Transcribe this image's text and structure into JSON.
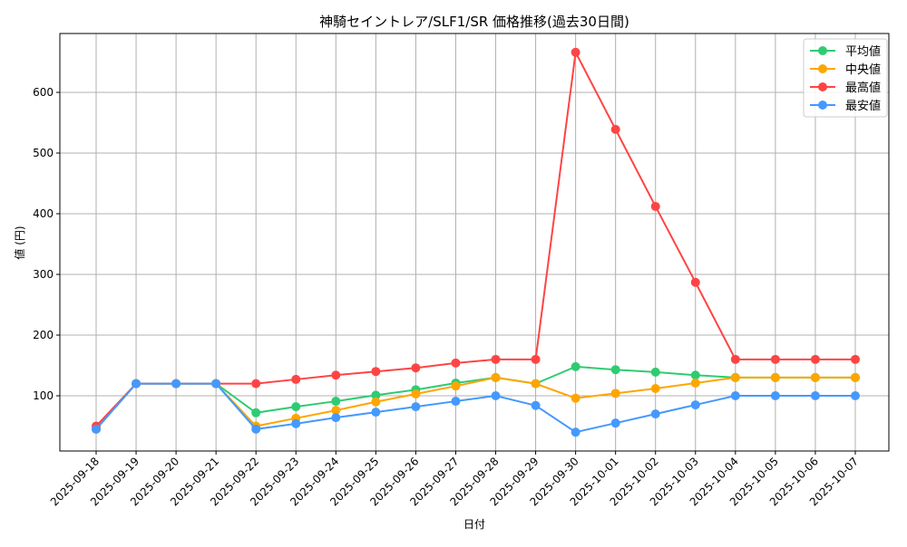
{
  "chart_data": {
    "type": "line",
    "title": "神騎セイントレア/SLF1/SR 価格推移(過去30日間)",
    "xlabel": "日付",
    "ylabel": "値 (円)",
    "ylim": [
      9,
      697
    ],
    "yticks": [
      100,
      200,
      300,
      400,
      500,
      600
    ],
    "grid": true,
    "legend_position": "top-right",
    "categories": [
      "2025-09-18",
      "2025-09-19",
      "2025-09-20",
      "2025-09-21",
      "2025-09-22",
      "2025-09-23",
      "2025-09-24",
      "2025-09-25",
      "2025-09-26",
      "2025-09-27",
      "2025-09-28",
      "2025-09-29",
      "2025-09-30",
      "2025-10-01",
      "2025-10-02",
      "2025-10-03",
      "2025-10-04",
      "2025-10-05",
      "2025-10-06",
      "2025-10-07"
    ],
    "series": [
      {
        "name": "平均値",
        "color": "#2ecc71",
        "values": [
          45,
          120,
          120,
          120,
          72,
          82,
          91,
          101,
          110,
          121,
          130,
          120,
          148,
          143,
          139,
          134,
          130,
          130,
          130,
          130
        ]
      },
      {
        "name": "中央値",
        "color": "#ffa500",
        "values": [
          45,
          120,
          120,
          120,
          50,
          63,
          76,
          90,
          103,
          116,
          130,
          120,
          96,
          104,
          112,
          121,
          130,
          130,
          130,
          130
        ]
      },
      {
        "name": "最高値",
        "color": "#ff4444",
        "values": [
          50,
          120,
          120,
          120,
          120,
          127,
          134,
          140,
          146,
          154,
          160,
          160,
          666,
          539,
          412,
          287,
          160,
          160,
          160,
          160
        ]
      },
      {
        "name": "最安値",
        "color": "#4499ff",
        "values": [
          45,
          120,
          120,
          120,
          45,
          54,
          64,
          73,
          82,
          91,
          100,
          84,
          40,
          55,
          70,
          85,
          100,
          100,
          100,
          100
        ]
      }
    ]
  }
}
